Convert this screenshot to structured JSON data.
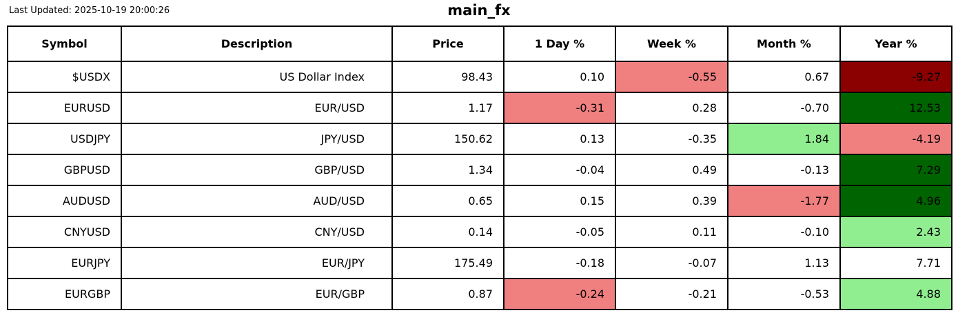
{
  "header": {
    "last_updated": "Last Updated: 2025-10-19 20:00:26",
    "title": "main_fx"
  },
  "colors": {
    "negative_mild": "#F08080",
    "negative_strong": "#8B0000",
    "positive_mild": "#90EE90",
    "positive_strong": "#006400",
    "grid": "#000000",
    "background": "#FFFFFF",
    "text": "#000000"
  },
  "chart_data": {
    "type": "table",
    "title": "main_fx",
    "columns": [
      "Symbol",
      "Description",
      "Price",
      "1 Day %",
      "Week %",
      "Month %",
      "Year %"
    ],
    "rows": [
      {
        "values": [
          "$USDX",
          "US Dollar Index",
          "98.43",
          "0.10",
          "-0.55",
          "0.67",
          "-9.27"
        ],
        "cell_colors": [
          null,
          null,
          null,
          null,
          "negative_mild",
          null,
          "negative_strong"
        ]
      },
      {
        "values": [
          "EURUSD",
          "EUR/USD",
          "1.17",
          "-0.31",
          "0.28",
          "-0.70",
          "12.53"
        ],
        "cell_colors": [
          null,
          null,
          null,
          "negative_mild",
          null,
          null,
          "positive_strong"
        ]
      },
      {
        "values": [
          "USDJPY",
          "JPY/USD",
          "150.62",
          "0.13",
          "-0.35",
          "1.84",
          "-4.19"
        ],
        "cell_colors": [
          null,
          null,
          null,
          null,
          null,
          "positive_mild",
          "negative_mild"
        ]
      },
      {
        "values": [
          "GBPUSD",
          "GBP/USD",
          "1.34",
          "-0.04",
          "0.49",
          "-0.13",
          "7.29"
        ],
        "cell_colors": [
          null,
          null,
          null,
          null,
          null,
          null,
          "positive_strong"
        ]
      },
      {
        "values": [
          "AUDUSD",
          "AUD/USD",
          "0.65",
          "0.15",
          "0.39",
          "-1.77",
          "4.96"
        ],
        "cell_colors": [
          null,
          null,
          null,
          null,
          null,
          "negative_mild",
          "positive_strong"
        ]
      },
      {
        "values": [
          "CNYUSD",
          "CNY/USD",
          "0.14",
          "-0.05",
          "0.11",
          "-0.10",
          "2.43"
        ],
        "cell_colors": [
          null,
          null,
          null,
          null,
          null,
          null,
          "positive_mild"
        ]
      },
      {
        "values": [
          "EURJPY",
          "EUR/JPY",
          "175.49",
          "-0.18",
          "-0.07",
          "1.13",
          "7.71"
        ],
        "cell_colors": [
          null,
          null,
          null,
          null,
          null,
          null,
          null
        ]
      },
      {
        "values": [
          "EURGBP",
          "EUR/GBP",
          "0.87",
          "-0.24",
          "-0.21",
          "-0.53",
          "4.88"
        ],
        "cell_colors": [
          null,
          null,
          null,
          "negative_mild",
          null,
          null,
          "positive_mild"
        ]
      }
    ]
  }
}
